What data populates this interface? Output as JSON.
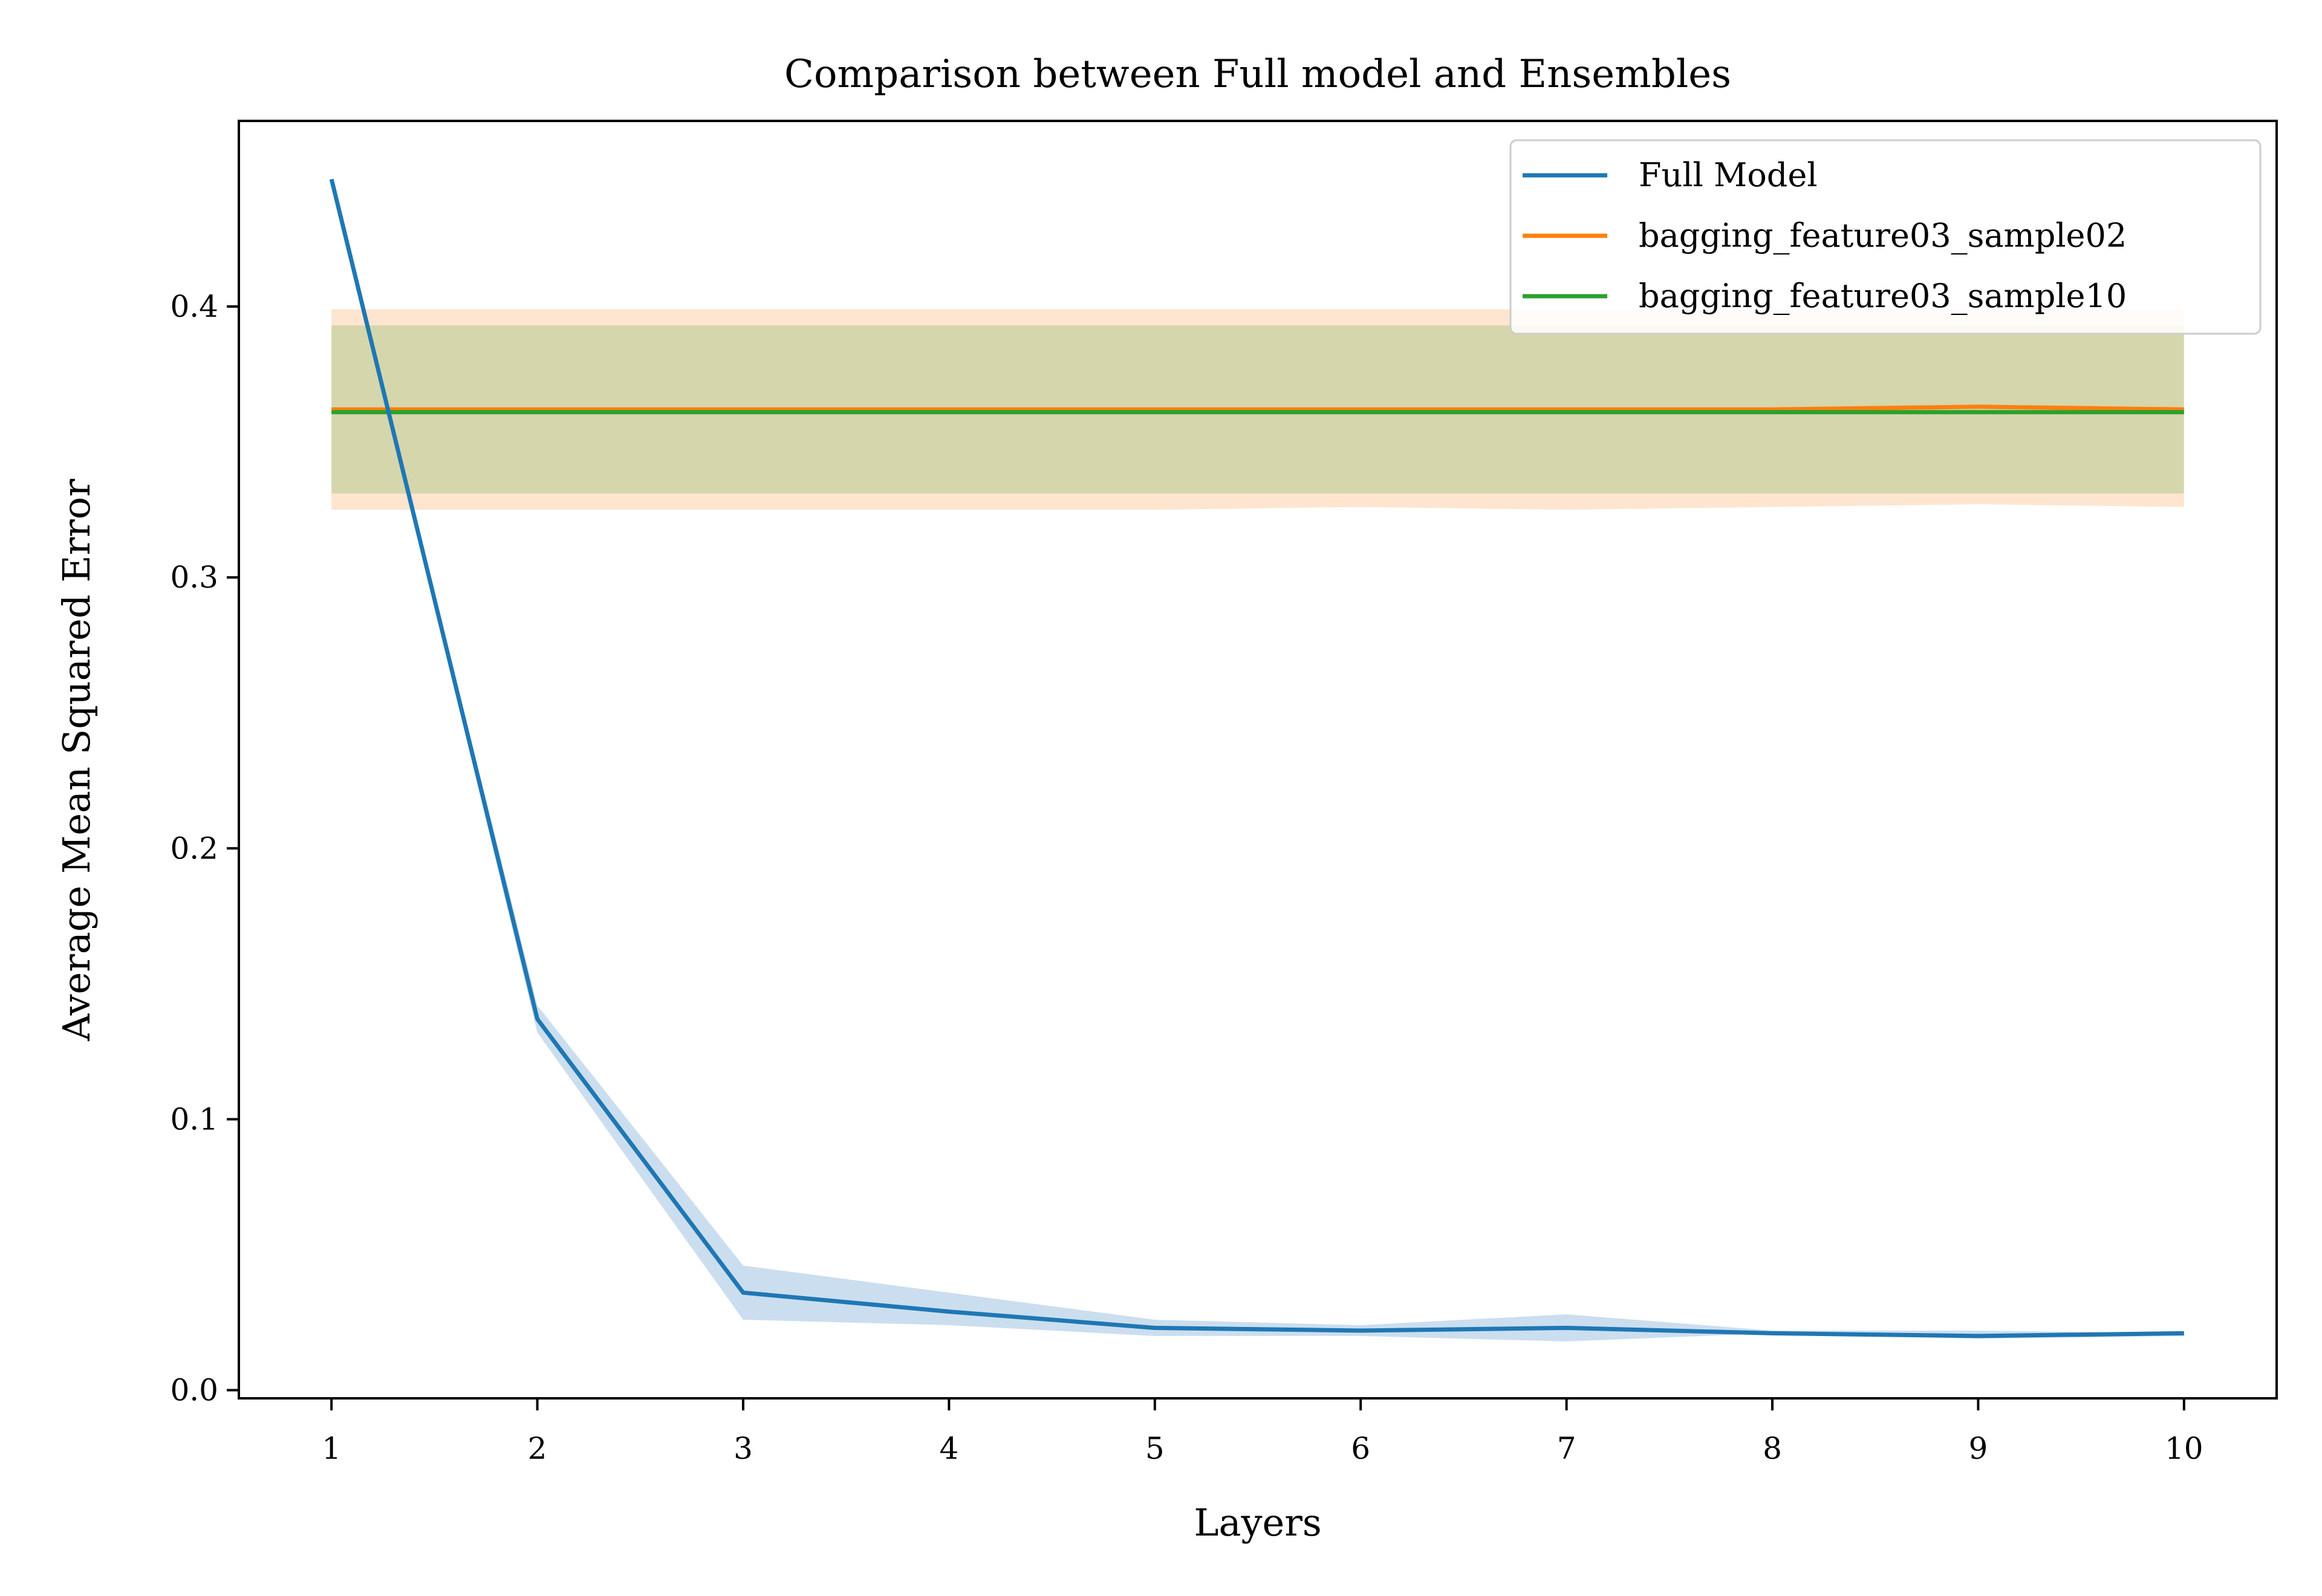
{
  "chart_data": {
    "type": "line",
    "title": "Comparison between Full model and Ensembles",
    "xlabel": "Layers",
    "ylabel": "Average Mean Squared Error",
    "x": [
      1,
      2,
      3,
      4,
      5,
      6,
      7,
      8,
      9,
      10
    ],
    "x_ticks": [
      "1",
      "2",
      "3",
      "4",
      "5",
      "6",
      "7",
      "8",
      "9",
      "10"
    ],
    "y_ticks": [
      "0.0",
      "0.1",
      "0.2",
      "0.3",
      "0.4"
    ],
    "xlim": [
      0.55,
      10.45
    ],
    "ylim": [
      -0.003,
      0.4685
    ],
    "grid": false,
    "legend_position": "top-right",
    "series": [
      {
        "name": "Full Model",
        "color": "#1f77b4",
        "values": [
          0.447,
          0.137,
          0.036,
          0.029,
          0.023,
          0.022,
          0.023,
          0.021,
          0.02,
          0.021
        ],
        "band_lower": [
          0.447,
          0.132,
          0.026,
          0.024,
          0.02,
          0.02,
          0.018,
          0.021,
          0.019,
          0.02
        ],
        "band_upper": [
          0.447,
          0.142,
          0.046,
          0.036,
          0.026,
          0.024,
          0.028,
          0.022,
          0.022,
          0.021
        ],
        "band_color": "#a8c8e4"
      },
      {
        "name": "bagging_feature03_sample02",
        "color": "#ff7f0e",
        "values": [
          0.362,
          0.362,
          0.362,
          0.362,
          0.362,
          0.362,
          0.362,
          0.362,
          0.363,
          0.362
        ],
        "band_lower": [
          0.325,
          0.325,
          0.325,
          0.325,
          0.325,
          0.326,
          0.325,
          0.326,
          0.327,
          0.326
        ],
        "band_upper": [
          0.399,
          0.399,
          0.399,
          0.399,
          0.399,
          0.399,
          0.399,
          0.399,
          0.399,
          0.399
        ],
        "band_color": "#fde4cc"
      },
      {
        "name": "bagging_feature03_sample10",
        "color": "#2ca02c",
        "values": [
          0.361,
          0.361,
          0.361,
          0.361,
          0.361,
          0.361,
          0.361,
          0.361,
          0.361,
          0.361
        ],
        "band_lower": [
          0.331,
          0.331,
          0.331,
          0.331,
          0.331,
          0.331,
          0.331,
          0.331,
          0.331,
          0.331
        ],
        "band_upper": [
          0.393,
          0.393,
          0.393,
          0.393,
          0.393,
          0.393,
          0.393,
          0.393,
          0.393,
          0.393
        ],
        "band_color": "#b4ca90"
      }
    ]
  }
}
